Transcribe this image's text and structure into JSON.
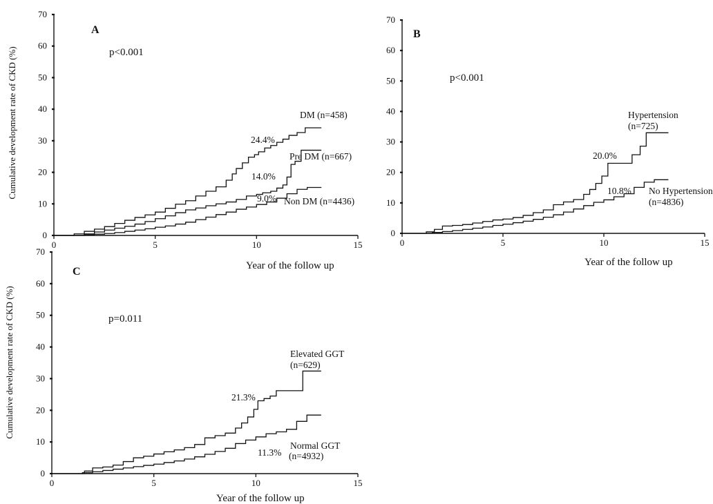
{
  "chart_data": [
    {
      "type": "line",
      "panel_letter": "A",
      "p_value": "p<0.001",
      "xlabel": "Year of the follow up",
      "ylabel": "Cumulative development rate of CKD (%)",
      "xlim": [
        0,
        15
      ],
      "ylim": [
        0,
        70
      ],
      "x_ticks": [
        "0",
        "5",
        "10",
        "15"
      ],
      "y_ticks": [
        "0",
        "10",
        "20",
        "30",
        "40",
        "50",
        "60",
        "70"
      ],
      "grid": false,
      "series": [
        {
          "name": "DM (n=458)",
          "annotation": "24.4%",
          "x": [
            0.6,
            1.0,
            1.5,
            2.0,
            2.5,
            3.0,
            3.5,
            4.0,
            4.5,
            5.0,
            5.5,
            6.0,
            6.5,
            7.0,
            7.5,
            8.0,
            8.5,
            8.8,
            9.0,
            9.3,
            9.6,
            9.9,
            10.1,
            10.4,
            10.7,
            11.0,
            11.3,
            11.6,
            12.0,
            12.4,
            13.2
          ],
          "y": [
            0,
            0.5,
            1.3,
            2.0,
            2.8,
            3.8,
            4.8,
            5.7,
            6.5,
            7.4,
            8.6,
            9.9,
            11.0,
            12.5,
            14.0,
            15.4,
            17.5,
            19.5,
            21.2,
            23.0,
            24.8,
            25.6,
            26.5,
            27.7,
            28.5,
            29.5,
            30.5,
            31.7,
            32.6,
            34.1,
            34.1
          ]
        },
        {
          "name": "Pre DM (n=667)",
          "annotation": "14.0%",
          "x": [
            0.8,
            1.5,
            2.0,
            2.5,
            3.0,
            3.5,
            4.0,
            4.5,
            5.0,
            5.5,
            6.0,
            6.5,
            7.0,
            7.5,
            8.0,
            8.5,
            9.0,
            9.5,
            10.0,
            10.3,
            10.7,
            11.0,
            11.3,
            11.5,
            11.7,
            11.9,
            12.2,
            13.2
          ],
          "y": [
            0,
            0.5,
            1.1,
            1.7,
            2.3,
            2.9,
            3.6,
            4.4,
            5.3,
            6.2,
            7.2,
            8.1,
            8.7,
            9.4,
            10.0,
            10.6,
            11.4,
            12.5,
            13.0,
            13.5,
            14.0,
            15.0,
            16.0,
            18.5,
            22.5,
            23.5,
            27.0,
            27.0
          ]
        },
        {
          "name": "Non DM (n=4436)",
          "annotation": "9.0%",
          "x": [
            1.0,
            1.5,
            2.0,
            2.5,
            3.0,
            3.5,
            4.0,
            4.5,
            5.0,
            5.5,
            6.0,
            6.5,
            7.0,
            7.5,
            8.0,
            8.5,
            9.0,
            9.5,
            10.0,
            10.5,
            11.0,
            11.5,
            12.0,
            12.5,
            13.2
          ],
          "y": [
            0,
            0.2,
            0.4,
            0.6,
            0.9,
            1.3,
            1.7,
            2.1,
            2.6,
            3.0,
            3.6,
            4.2,
            5.0,
            5.8,
            6.6,
            7.4,
            8.3,
            9.0,
            9.8,
            10.6,
            11.8,
            13.2,
            14.6,
            15.2,
            15.2
          ]
        }
      ]
    },
    {
      "type": "line",
      "panel_letter": "B",
      "p_value": "p<0.001",
      "xlabel": "Year of the follow up",
      "ylabel": "",
      "xlim": [
        0,
        15
      ],
      "ylim": [
        0,
        70
      ],
      "x_ticks": [
        "0",
        "5",
        "10",
        "15"
      ],
      "y_ticks": [
        "0",
        "10",
        "20",
        "30",
        "40",
        "50",
        "60",
        "70"
      ],
      "grid": false,
      "series": [
        {
          "name_line1": "Hypertension",
          "name_line2": "(n=725)",
          "annotation": "20.0%",
          "x": [
            0.8,
            1.2,
            1.6,
            2.0,
            2.5,
            3.0,
            3.5,
            4.0,
            4.5,
            5.0,
            5.5,
            6.0,
            6.5,
            7.0,
            7.5,
            8.0,
            8.5,
            9.0,
            9.3,
            9.6,
            9.9,
            10.2,
            10.6,
            11.0,
            11.4,
            11.8,
            12.1,
            12.5,
            13.2
          ],
          "y": [
            0,
            0.5,
            1.3,
            2.4,
            2.6,
            2.9,
            3.4,
            3.9,
            4.4,
            4.7,
            5.2,
            5.9,
            6.8,
            7.7,
            9.4,
            10.3,
            11.1,
            12.8,
            14.4,
            16.4,
            18.8,
            23.0,
            23.0,
            23.0,
            25.8,
            28.6,
            33.0,
            33.0,
            33.0
          ]
        },
        {
          "name_line1": "No Hypertension",
          "name_line2": "(n=4836)",
          "annotation": "10.8%",
          "x": [
            1.0,
            1.5,
            2.0,
            2.5,
            3.0,
            3.5,
            4.0,
            4.5,
            5.0,
            5.5,
            6.0,
            6.5,
            7.0,
            7.5,
            8.0,
            8.5,
            9.0,
            9.5,
            10.0,
            10.5,
            11.0,
            11.5,
            12.0,
            12.5,
            13.2
          ],
          "y": [
            0,
            0.3,
            0.6,
            0.9,
            1.3,
            1.7,
            2.1,
            2.6,
            3.0,
            3.5,
            4.0,
            4.6,
            5.3,
            6.1,
            7.0,
            8.0,
            9.1,
            10.2,
            11.0,
            12.0,
            13.0,
            15.1,
            16.8,
            17.6,
            17.6
          ]
        }
      ]
    },
    {
      "type": "line",
      "panel_letter": "C",
      "p_value": "p=0.011",
      "xlabel": "Year of the follow up",
      "ylabel": "Cumulative development rate of CKD (%)",
      "xlim": [
        0,
        15
      ],
      "ylim": [
        0,
        70
      ],
      "x_ticks": [
        "0",
        "5",
        "10",
        "15"
      ],
      "y_ticks": [
        "0",
        "10",
        "20",
        "30",
        "40",
        "50",
        "60",
        "70"
      ],
      "grid": false,
      "series": [
        {
          "name_line1": "Elevated GGT",
          "name_line2": "(n=629)",
          "annotation": "21.3%",
          "x": [
            1.2,
            1.6,
            2.0,
            2.5,
            3.0,
            3.5,
            4.0,
            4.5,
            5.0,
            5.5,
            6.0,
            6.5,
            7.0,
            7.5,
            8.0,
            8.5,
            9.0,
            9.3,
            9.6,
            9.9,
            10.1,
            10.4,
            10.7,
            11.0,
            11.4,
            11.7,
            12.0,
            12.3,
            13.2
          ],
          "y": [
            0,
            0.8,
            1.8,
            2.1,
            2.7,
            3.8,
            5.0,
            5.5,
            6.2,
            6.9,
            7.5,
            8.2,
            9.2,
            11.3,
            12.0,
            12.8,
            14.4,
            16.0,
            17.9,
            20.3,
            23.0,
            23.7,
            24.5,
            26.2,
            26.2,
            26.2,
            26.2,
            32.4,
            32.4
          ]
        },
        {
          "name_line1": "Normal GGT",
          "name_line2": "(n=4932)",
          "annotation": "11.3%",
          "x": [
            1.0,
            1.5,
            2.0,
            2.5,
            3.0,
            3.5,
            4.0,
            4.5,
            5.0,
            5.5,
            6.0,
            6.5,
            7.0,
            7.5,
            8.0,
            8.5,
            9.0,
            9.5,
            10.0,
            10.5,
            11.0,
            11.5,
            12.0,
            12.5,
            13.2
          ],
          "y": [
            0,
            0.3,
            0.6,
            1.0,
            1.4,
            1.8,
            2.2,
            2.6,
            3.0,
            3.5,
            4.0,
            4.6,
            5.3,
            6.1,
            7.0,
            8.0,
            9.5,
            10.6,
            11.6,
            12.6,
            13.2,
            14.0,
            16.5,
            18.5,
            18.5
          ]
        }
      ]
    }
  ]
}
